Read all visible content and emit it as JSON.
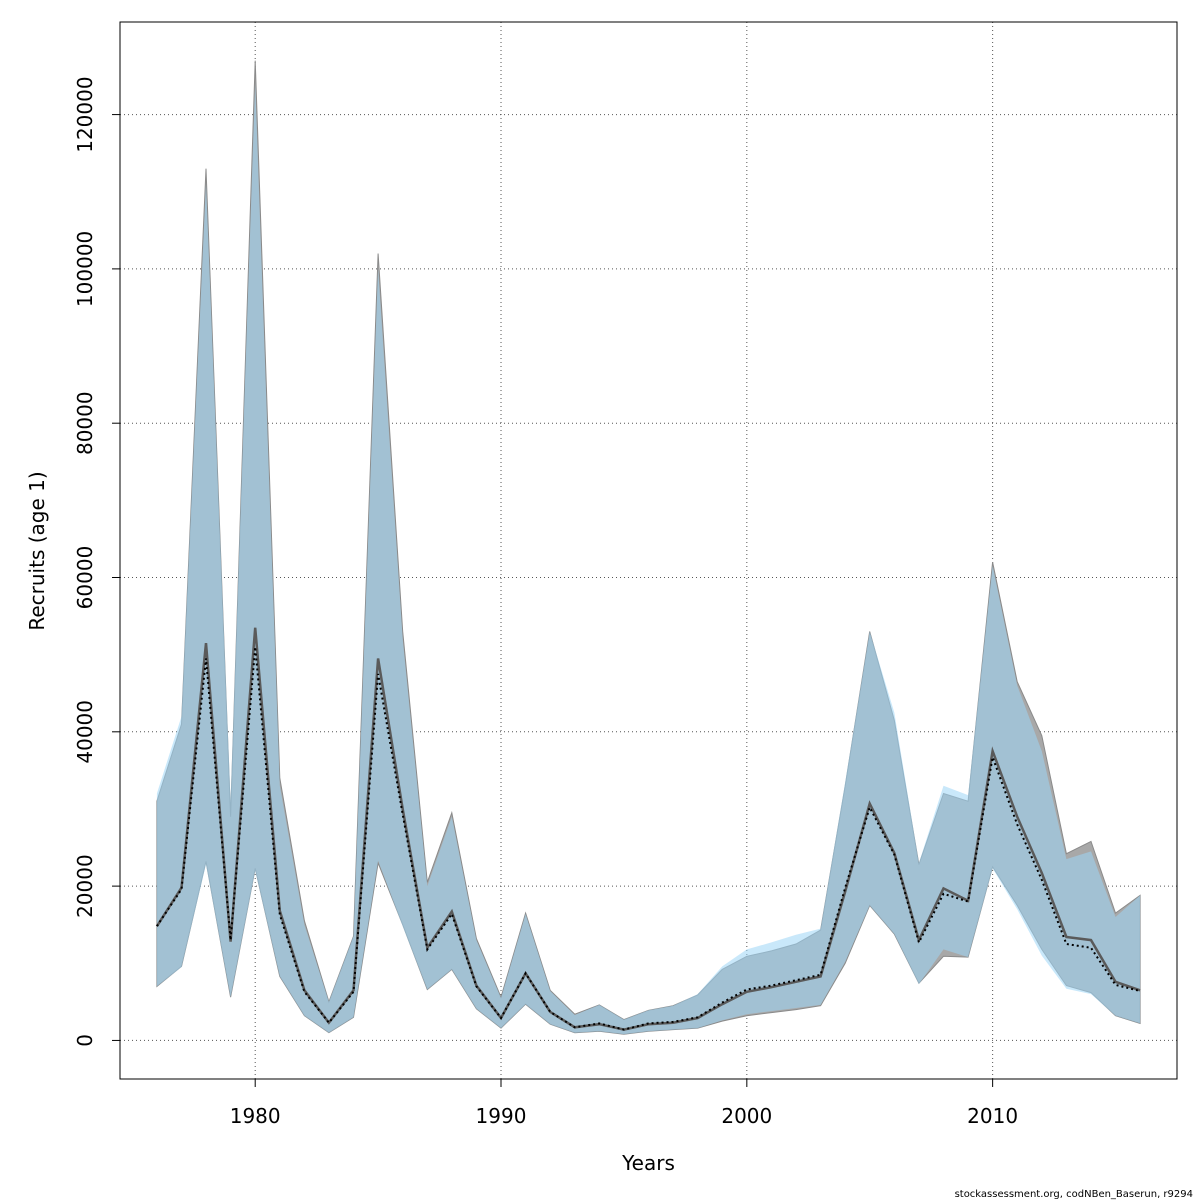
{
  "chart_data": {
    "type": "area",
    "title": "",
    "xlabel": "Years",
    "ylabel": "Recruits (age 1)",
    "xlim": [
      1974.5,
      2017.5
    ],
    "ylim": [
      -5000,
      132000
    ],
    "x_ticks": [
      1980,
      1990,
      2000,
      2010
    ],
    "y_ticks": [
      0,
      20000,
      40000,
      60000,
      80000,
      100000,
      120000
    ],
    "grid": true,
    "x": [
      1976,
      1977,
      1978,
      1979,
      1980,
      1981,
      1982,
      1983,
      1984,
      1985,
      1986,
      1987,
      1988,
      1989,
      1990,
      1991,
      1992,
      1993,
      1994,
      1995,
      1996,
      1997,
      1998,
      1999,
      2000,
      2001,
      2002,
      2003,
      2004,
      2005,
      2006,
      2007,
      2008,
      2009,
      2010,
      2011,
      2012,
      2013,
      2014,
      2015,
      2016
    ],
    "series": [
      {
        "role": "grey-band",
        "color": "#a8a8a8",
        "values": [
          14800,
          19800,
          51500,
          12800,
          53500,
          16800,
          6500,
          2300,
          6500,
          49500,
          30000,
          12000,
          16700,
          7100,
          2900,
          8700,
          3700,
          1700,
          2100,
          1400,
          2100,
          2300,
          2900,
          4700,
          6300,
          6900,
          7600,
          8300,
          19300,
          30700,
          24300,
          13000,
          19700,
          18100,
          37500,
          29000,
          21700,
          13400,
          13000,
          7600,
          6500
        ],
        "upper": [
          31000,
          41000,
          113000,
          29000,
          127000,
          34000,
          15500,
          5000,
          13500,
          102000,
          53000,
          20500,
          29500,
          13200,
          5600,
          16500,
          6500,
          3400,
          4600,
          2700,
          3900,
          4500,
          5900,
          9200,
          10900,
          11600,
          12500,
          14300,
          33000,
          53000,
          41500,
          22800,
          32000,
          31000,
          62000,
          46500,
          39500,
          24200,
          25800,
          16500,
          18800
        ],
        "lower": [
          7000,
          9600,
          23200,
          5600,
          22300,
          8300,
          3200,
          1000,
          3000,
          23000,
          15000,
          6600,
          9200,
          4100,
          1600,
          4700,
          2100,
          1000,
          1200,
          800,
          1200,
          1400,
          1600,
          2500,
          3200,
          3600,
          4000,
          4500,
          10000,
          17500,
          13800,
          7400,
          10900,
          10800,
          22500,
          17500,
          11800,
          7100,
          6200,
          3200,
          2200
        ]
      },
      {
        "role": "blue-band",
        "color": "#9dd6f5",
        "values": [
          14800,
          19600,
          49500,
          13000,
          51000,
          16300,
          6300,
          2300,
          6300,
          47500,
          29300,
          11800,
          16400,
          7000,
          2900,
          8700,
          3700,
          1700,
          2200,
          1400,
          2200,
          2400,
          3000,
          4900,
          6600,
          7100,
          7800,
          8500,
          19800,
          30200,
          24100,
          12700,
          19000,
          18000,
          36700,
          28000,
          20800,
          12500,
          12000,
          7200,
          6400
        ],
        "upper": [
          32000,
          42000,
          111000,
          31000,
          124000,
          33000,
          15000,
          5000,
          13500,
          100000,
          52000,
          20000,
          29000,
          13000,
          5500,
          16400,
          6400,
          3300,
          4600,
          2700,
          3900,
          4500,
          6000,
          9600,
          11800,
          12700,
          13700,
          14500,
          33500,
          53000,
          42500,
          23000,
          33000,
          31800,
          61500,
          46000,
          37500,
          23500,
          24500,
          16000,
          18800
        ],
        "lower": [
          7000,
          9500,
          22800,
          5600,
          22000,
          8300,
          3200,
          1000,
          3000,
          23300,
          14800,
          6600,
          9200,
          4100,
          1600,
          4700,
          2100,
          1000,
          1200,
          800,
          1200,
          1400,
          1600,
          2600,
          3400,
          3800,
          4200,
          4600,
          10200,
          17500,
          13800,
          7300,
          11800,
          10800,
          22300,
          17000,
          11000,
          6700,
          6000,
          3200,
          2200
        ]
      }
    ]
  },
  "footer": {
    "credit": "stockassessment.org, codNBen_Baserun, r9294"
  }
}
